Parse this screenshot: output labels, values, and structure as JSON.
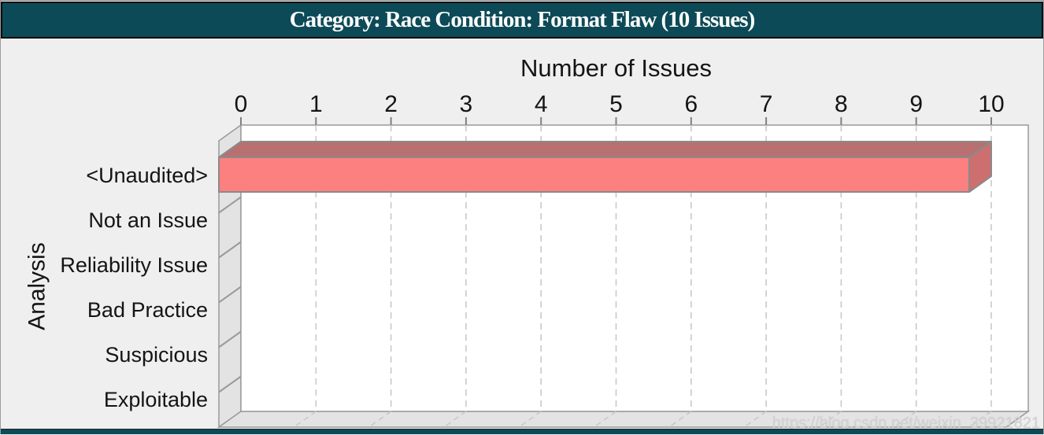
{
  "title_bar": {
    "text": "Category: Race Condition: Format Flaw (10 Issues)",
    "bg_color": "#0d4a57",
    "text_color": "#ffffff"
  },
  "footer_bar": {
    "bg_color": "#0d4a57"
  },
  "watermark": "https://blog.csdn.net/weixin_39921821",
  "chart_data": {
    "type": "bar",
    "orientation": "horizontal",
    "style": "3d",
    "title": "Category: Race Condition: Format Flaw (10 Issues)",
    "xlabel": "Number of Issues",
    "ylabel": "Analysis",
    "categories": [
      "<Unaudited>",
      "Not an Issue",
      "Reliability Issue",
      "Bad Practice",
      "Suspicious",
      "Exploitable"
    ],
    "values": [
      10,
      0,
      0,
      0,
      0,
      0
    ],
    "xlim": [
      0,
      10.5
    ],
    "xticks": [
      0,
      1,
      2,
      3,
      4,
      5,
      6,
      7,
      8,
      9,
      10
    ],
    "grid": "dashed-vertical",
    "legend": "none",
    "colors": {
      "bar_front": "#fd8080",
      "bar_top": "#b87070",
      "bar_side": "#ce6f6f",
      "bar_outline": "#8a8a8a",
      "plot_bg": "#ffffff",
      "wall_fill": "#e3e3e3",
      "frame_stroke": "#9a9a9a",
      "gridline": "#c9c9c9",
      "page_bg": "#efefef"
    }
  }
}
